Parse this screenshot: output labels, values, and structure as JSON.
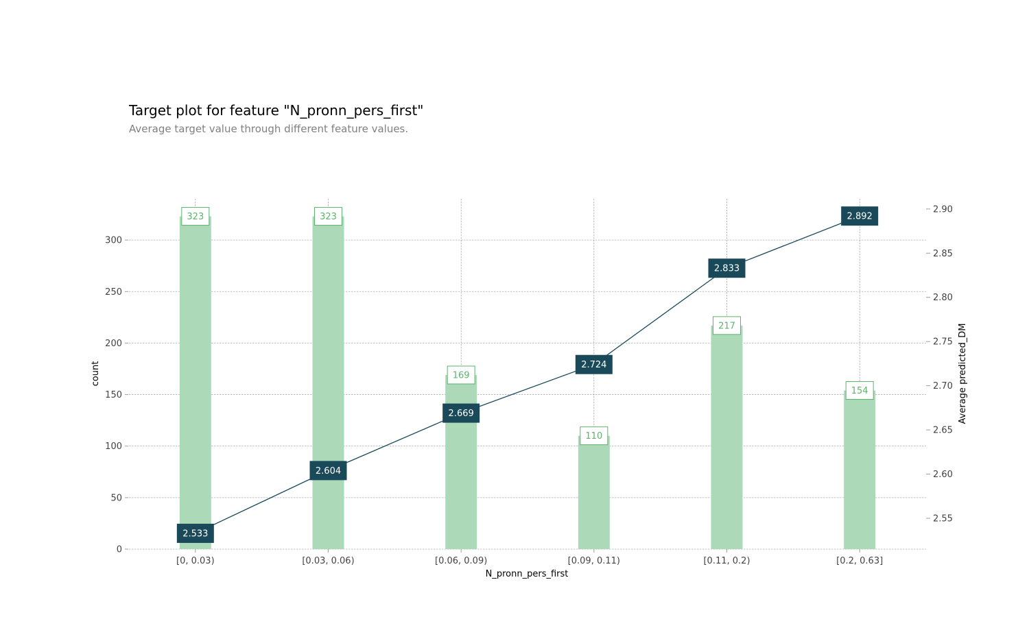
{
  "header": {
    "title": "Target plot for feature \"N_pronn_pers_first\"",
    "subtitle": "Average target value through different feature values."
  },
  "chart_data": {
    "type": "bar",
    "categories": [
      "[0, 0.03)",
      "[0.03, 0.06)",
      "[0.06, 0.09)",
      "[0.09, 0.11)",
      "[0.11, 0.2)",
      "[0.2, 0.63]"
    ],
    "series": [
      {
        "name": "count",
        "type": "bar",
        "axis": "left",
        "values": [
          323,
          323,
          169,
          110,
          217,
          154
        ]
      },
      {
        "name": "Average predicted_DM",
        "type": "line",
        "axis": "right",
        "values": [
          2.533,
          2.604,
          2.669,
          2.724,
          2.833,
          2.892
        ]
      }
    ],
    "xlabel": "N_pronn_pers_first",
    "ylabel": "count",
    "ylabel_right": "Average predicted_DM",
    "ylim": [
      0,
      340
    ],
    "ylim_right": [
      2.5151,
      2.9115
    ],
    "yticks": [
      "0",
      "50",
      "100",
      "150",
      "200",
      "250",
      "300"
    ],
    "yticks_right": [
      "2.55",
      "2.60",
      "2.65",
      "2.70",
      "2.75",
      "2.80",
      "2.85",
      "2.90"
    ],
    "grid": true,
    "colors": {
      "bar": "#acd9b8",
      "bar_label": "#5cb36d",
      "line": "#1a4a5a",
      "line_label_bg": "#1a4a5a"
    }
  }
}
